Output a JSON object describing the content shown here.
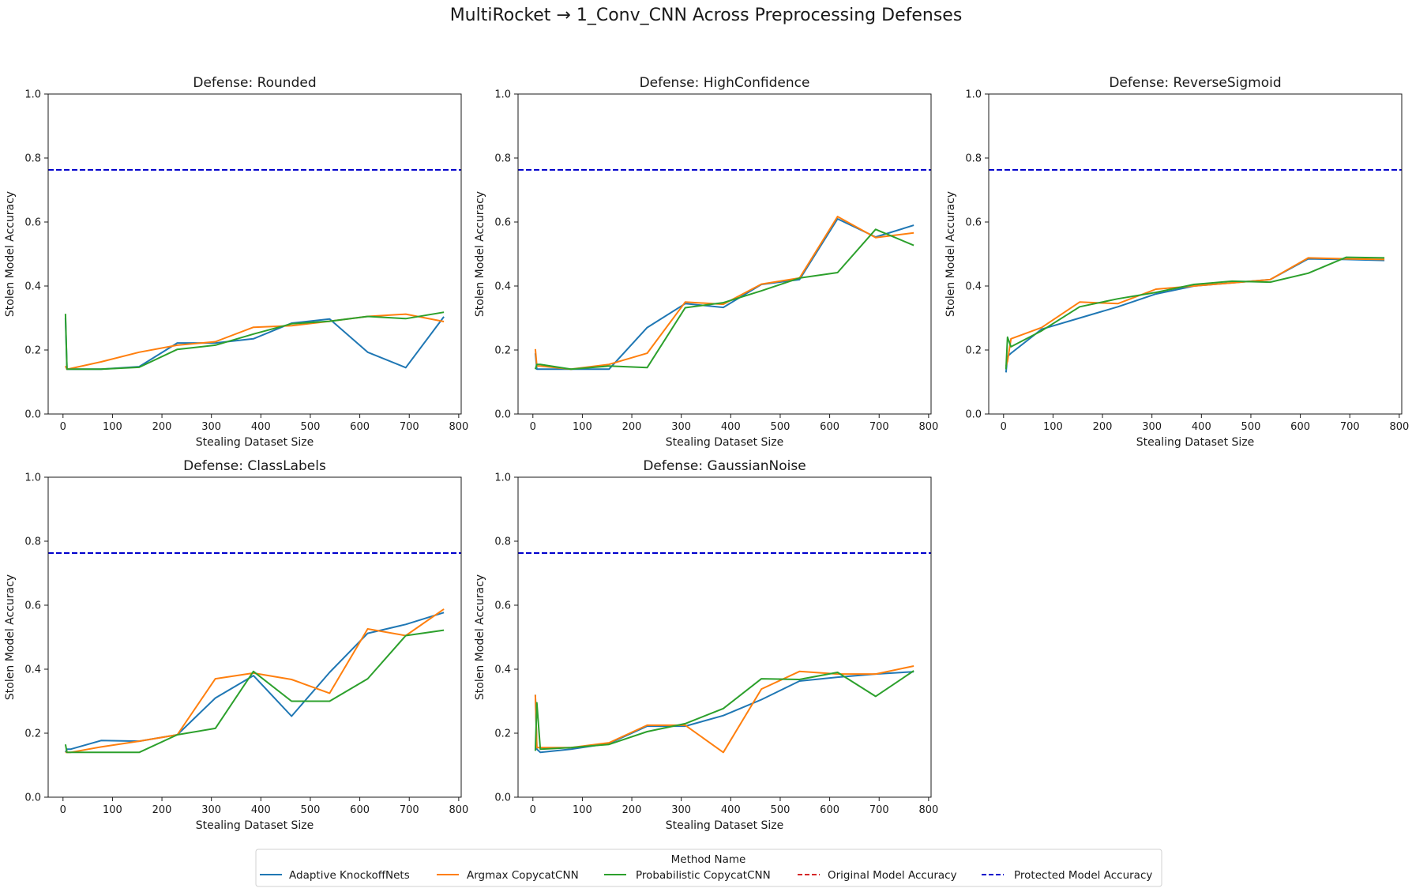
{
  "figure_title": "MultiRocket → 1_Conv_CNN Across Preprocessing Defenses",
  "legend": {
    "title": "Method Name",
    "entries": [
      {
        "label": "Adaptive KnockoffNets",
        "color": "#1f77b4",
        "style": "solid"
      },
      {
        "label": "Argmax CopycatCNN",
        "color": "#ff7f0e",
        "style": "solid"
      },
      {
        "label": "Probabilistic CopycatCNN",
        "color": "#2ca02c",
        "style": "solid"
      },
      {
        "label": "Original Model Accuracy",
        "color": "#d62728",
        "style": "dashed"
      },
      {
        "label": "Protected Model Accuracy",
        "color": "#0000cc",
        "style": "dashed"
      }
    ]
  },
  "chart_data": [
    {
      "type": "line",
      "title": "Defense: Rounded",
      "xlabel": "Stealing Dataset Size",
      "ylabel": "Stolen Model Accuracy",
      "xlim": [
        -30,
        805
      ],
      "ylim": [
        0.0,
        1.0
      ],
      "xticks": [
        "0",
        "100",
        "200",
        "300",
        "400",
        "500",
        "600",
        "700",
        "800"
      ],
      "yticks": [
        "0.0",
        "0.2",
        "0.4",
        "0.6",
        "0.8",
        "1.0"
      ],
      "grid": false,
      "x": [
        5,
        8,
        15,
        77,
        154,
        231,
        308,
        385,
        462,
        539,
        616,
        693,
        770
      ],
      "series": [
        {
          "name": "Adaptive KnockoffNets",
          "color": "#1f77b4",
          "values": [
            0.3,
            0.14,
            0.14,
            0.14,
            0.148,
            0.222,
            0.222,
            0.235,
            0.284,
            0.297,
            0.193,
            0.145,
            0.304
          ]
        },
        {
          "name": "Argmax CopycatCNN",
          "color": "#ff7f0e",
          "values": [
            0.15,
            0.14,
            0.142,
            0.163,
            0.193,
            0.215,
            0.226,
            0.271,
            0.276,
            0.29,
            0.305,
            0.312,
            0.289
          ]
        },
        {
          "name": "Probabilistic CopycatCNN",
          "color": "#2ca02c",
          "values": [
            0.313,
            0.14,
            0.14,
            0.14,
            0.146,
            0.202,
            0.215,
            0.25,
            0.282,
            0.29,
            0.305,
            0.298,
            0.318
          ]
        }
      ],
      "protected_accuracy": 0.763
    },
    {
      "type": "line",
      "title": "Defense: HighConfidence",
      "xlabel": "Stealing Dataset Size",
      "ylabel": "Stolen Model Accuracy",
      "xlim": [
        -30,
        805
      ],
      "ylim": [
        0.0,
        1.0
      ],
      "xticks": [
        "0",
        "100",
        "200",
        "300",
        "400",
        "500",
        "600",
        "700",
        "800"
      ],
      "yticks": [
        "0.0",
        "0.2",
        "0.4",
        "0.6",
        "0.8",
        "1.0"
      ],
      "grid": false,
      "x": [
        5,
        8,
        15,
        77,
        154,
        231,
        308,
        385,
        462,
        539,
        616,
        693,
        770
      ],
      "series": [
        {
          "name": "Adaptive KnockoffNets",
          "color": "#1f77b4",
          "values": [
            0.19,
            0.14,
            0.14,
            0.14,
            0.14,
            0.27,
            0.345,
            0.333,
            0.405,
            0.42,
            0.61,
            0.553,
            0.59
          ]
        },
        {
          "name": "Argmax CopycatCNN",
          "color": "#ff7f0e",
          "values": [
            0.203,
            0.15,
            0.15,
            0.14,
            0.155,
            0.19,
            0.35,
            0.343,
            0.406,
            0.425,
            0.617,
            0.551,
            0.566
          ]
        },
        {
          "name": "Probabilistic CopycatCNN",
          "color": "#2ca02c",
          "values": [
            0.14,
            0.155,
            0.155,
            0.14,
            0.15,
            0.145,
            0.332,
            0.348,
            0.385,
            0.425,
            0.442,
            0.577,
            0.527
          ]
        }
      ],
      "protected_accuracy": 0.763
    },
    {
      "type": "line",
      "title": "Defense: ReverseSigmoid",
      "xlabel": "Stealing Dataset Size",
      "ylabel": "Stolen Model Accuracy",
      "xlim": [
        -30,
        805
      ],
      "ylim": [
        0.0,
        1.0
      ],
      "xticks": [
        "0",
        "100",
        "200",
        "300",
        "400",
        "500",
        "600",
        "700",
        "800"
      ],
      "yticks": [
        "0.0",
        "0.2",
        "0.4",
        "0.6",
        "0.8",
        "1.0"
      ],
      "grid": false,
      "x": [
        5,
        8,
        15,
        77,
        154,
        231,
        308,
        385,
        462,
        539,
        616,
        693,
        770
      ],
      "series": [
        {
          "name": "Adaptive KnockoffNets",
          "color": "#1f77b4",
          "values": [
            0.13,
            0.18,
            0.19,
            0.265,
            0.3,
            0.335,
            0.375,
            0.4,
            0.41,
            0.42,
            0.485,
            0.483,
            0.48
          ]
        },
        {
          "name": "Argmax CopycatCNN",
          "color": "#ff7f0e",
          "values": [
            0.15,
            0.165,
            0.235,
            0.27,
            0.35,
            0.345,
            0.39,
            0.4,
            0.41,
            0.42,
            0.488,
            0.485,
            0.483
          ]
        },
        {
          "name": "Probabilistic CopycatCNN",
          "color": "#2ca02c",
          "values": [
            0.14,
            0.24,
            0.21,
            0.26,
            0.335,
            0.36,
            0.38,
            0.405,
            0.415,
            0.412,
            0.44,
            0.49,
            0.488
          ]
        }
      ],
      "protected_accuracy": 0.763
    },
    {
      "type": "line",
      "title": "Defense: ClassLabels",
      "xlabel": "Stealing Dataset Size",
      "ylabel": "Stolen Model Accuracy",
      "xlim": [
        -30,
        805
      ],
      "ylim": [
        0.0,
        1.0
      ],
      "xticks": [
        "0",
        "100",
        "200",
        "300",
        "400",
        "500",
        "600",
        "700",
        "800"
      ],
      "yticks": [
        "0.0",
        "0.2",
        "0.4",
        "0.6",
        "0.8",
        "1.0"
      ],
      "grid": false,
      "x": [
        5,
        8,
        15,
        77,
        154,
        231,
        308,
        385,
        462,
        539,
        616,
        693,
        770
      ],
      "series": [
        {
          "name": "Adaptive KnockoffNets",
          "color": "#1f77b4",
          "values": [
            0.14,
            0.15,
            0.15,
            0.177,
            0.175,
            0.195,
            0.31,
            0.38,
            0.253,
            0.39,
            0.512,
            0.54,
            0.577
          ]
        },
        {
          "name": "Argmax CopycatCNN",
          "color": "#ff7f0e",
          "values": [
            0.14,
            0.14,
            0.14,
            0.157,
            0.175,
            0.195,
            0.37,
            0.388,
            0.368,
            0.325,
            0.526,
            0.505,
            0.588
          ]
        },
        {
          "name": "Probabilistic CopycatCNN",
          "color": "#2ca02c",
          "values": [
            0.165,
            0.14,
            0.14,
            0.14,
            0.14,
            0.195,
            0.215,
            0.393,
            0.3,
            0.3,
            0.37,
            0.505,
            0.522
          ]
        }
      ],
      "protected_accuracy": 0.763
    },
    {
      "type": "line",
      "title": "Defense: GaussianNoise",
      "xlabel": "Stealing Dataset Size",
      "ylabel": "Stolen Model Accuracy",
      "xlim": [
        -30,
        805
      ],
      "ylim": [
        0.0,
        1.0
      ],
      "xticks": [
        "0",
        "100",
        "200",
        "300",
        "400",
        "500",
        "600",
        "700",
        "800"
      ],
      "yticks": [
        "0.0",
        "0.2",
        "0.4",
        "0.6",
        "0.8",
        "1.0"
      ],
      "grid": false,
      "x": [
        5,
        8,
        15,
        77,
        154,
        231,
        308,
        385,
        462,
        539,
        616,
        693,
        770
      ],
      "series": [
        {
          "name": "Adaptive KnockoffNets",
          "color": "#1f77b4",
          "values": [
            0.32,
            0.15,
            0.14,
            0.15,
            0.168,
            0.222,
            0.222,
            0.255,
            0.305,
            0.363,
            0.375,
            0.385,
            0.392
          ]
        },
        {
          "name": "Argmax CopycatCNN",
          "color": "#ff7f0e",
          "values": [
            0.32,
            0.155,
            0.155,
            0.155,
            0.17,
            0.225,
            0.225,
            0.14,
            0.338,
            0.393,
            0.385,
            0.385,
            0.41
          ]
        },
        {
          "name": "Probabilistic CopycatCNN",
          "color": "#2ca02c",
          "values": [
            0.145,
            0.295,
            0.15,
            0.155,
            0.165,
            0.205,
            0.23,
            0.277,
            0.37,
            0.368,
            0.39,
            0.315,
            0.395
          ]
        }
      ],
      "protected_accuracy": 0.763
    }
  ]
}
